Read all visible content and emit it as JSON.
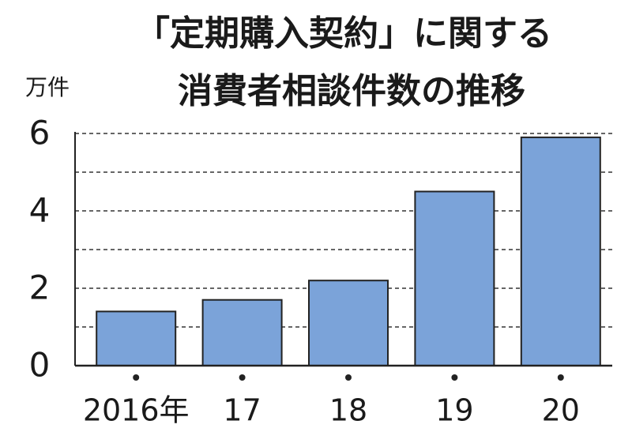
{
  "chart_data": {
    "type": "bar",
    "title_lines": [
      "「定期購入契約」に関する",
      "消費者相談件数の推移"
    ],
    "y_label": "万件",
    "categories": [
      "2016年",
      "17",
      "18",
      "19",
      "20"
    ],
    "values": [
      1.4,
      1.7,
      2.2,
      4.5,
      5.9
    ],
    "color": "#7ba3d9",
    "ylim": [
      0,
      6
    ],
    "yticks": [
      0,
      2,
      4,
      6
    ],
    "minor_yticks": [
      1,
      3,
      5
    ],
    "grid": true
  }
}
